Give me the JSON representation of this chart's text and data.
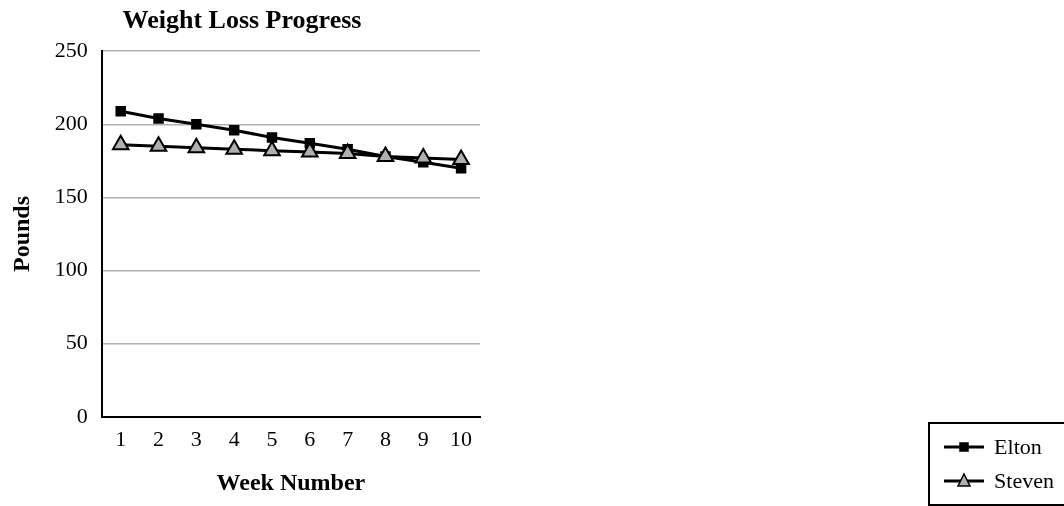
{
  "chart_data": {
    "type": "line",
    "title": "Weight Loss Progress",
    "xlabel": "Week Number",
    "ylabel": "Pounds",
    "categories": [
      "1",
      "2",
      "3",
      "4",
      "5",
      "6",
      "7",
      "8",
      "9",
      "10"
    ],
    "series": [
      {
        "name": "Elton",
        "color": "#000000",
        "marker": "square",
        "values": [
          209,
          204,
          200,
          196,
          191,
          187,
          183,
          178,
          174,
          170
        ]
      },
      {
        "name": "Steven",
        "color": "#000000",
        "marker": "triangle",
        "values": [
          186,
          185,
          184,
          183,
          182,
          181,
          180,
          178,
          177,
          176
        ]
      }
    ],
    "ylim": [
      0,
      250
    ],
    "yticks": [
      0,
      50,
      100,
      150,
      200,
      250
    ],
    "grid": "y",
    "legend": "bottom right"
  }
}
